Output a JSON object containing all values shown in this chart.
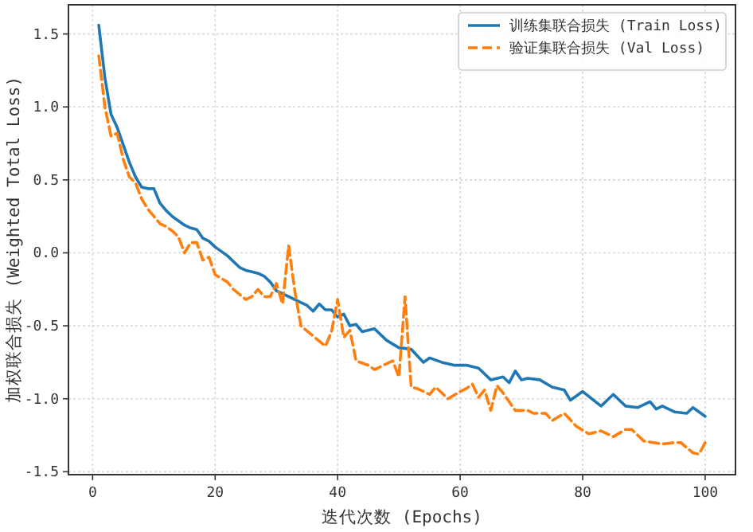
{
  "chart_data": {
    "type": "line",
    "xlabel": "迭代次数 (Epochs)",
    "ylabel": "加权联合损失 (Weighted Total Loss)",
    "xlim": [
      -3.95,
      104.95
    ],
    "ylim": [
      -1.52,
      1.7
    ],
    "xticks": [
      0,
      20,
      40,
      60,
      80,
      100
    ],
    "yticks": [
      {
        "value": -1.5,
        "label": "-1.5"
      },
      {
        "value": -1.0,
        "label": "-1.0"
      },
      {
        "value": -0.5,
        "label": "-0.5"
      },
      {
        "value": 0.0,
        "label": "0.0"
      },
      {
        "value": 0.5,
        "label": "0.5"
      },
      {
        "value": 1.0,
        "label": "1.0"
      },
      {
        "value": 1.5,
        "label": "1.5"
      }
    ],
    "grid": true,
    "legend": "top right",
    "series": [
      {
        "name": "训练集联合损失 (Train Loss)",
        "color": "#1f77b4",
        "line_style": "solid",
        "x": [
          1,
          2,
          3,
          4,
          5,
          6,
          7,
          8,
          9,
          10,
          11,
          12,
          13,
          14,
          15,
          16,
          17,
          18,
          19,
          20,
          21,
          22,
          23,
          24,
          25,
          26,
          27,
          28,
          29,
          30,
          32,
          34,
          35,
          36,
          37,
          38,
          39,
          40,
          41,
          42,
          43,
          44,
          46,
          48,
          50,
          52,
          54,
          55,
          57,
          59,
          61,
          63,
          65,
          67,
          68,
          69,
          70,
          71,
          73,
          75,
          77,
          78,
          80,
          83,
          85,
          87,
          89,
          91,
          92,
          93,
          95,
          97,
          98,
          100
        ],
        "values": [
          1.56,
          1.2,
          0.95,
          0.86,
          0.74,
          0.62,
          0.52,
          0.45,
          0.44,
          0.44,
          0.34,
          0.29,
          0.25,
          0.22,
          0.19,
          0.17,
          0.16,
          0.1,
          0.08,
          0.04,
          0.01,
          -0.02,
          -0.06,
          -0.1,
          -0.12,
          -0.13,
          -0.14,
          -0.16,
          -0.2,
          -0.26,
          -0.3,
          -0.34,
          -0.36,
          -0.4,
          -0.35,
          -0.39,
          -0.39,
          -0.44,
          -0.42,
          -0.5,
          -0.49,
          -0.54,
          -0.52,
          -0.6,
          -0.65,
          -0.66,
          -0.75,
          -0.72,
          -0.75,
          -0.77,
          -0.77,
          -0.79,
          -0.87,
          -0.85,
          -0.89,
          -0.81,
          -0.87,
          -0.86,
          -0.87,
          -0.92,
          -0.94,
          -1.01,
          -0.95,
          -1.05,
          -0.97,
          -1.05,
          -1.06,
          -1.02,
          -1.07,
          -1.05,
          -1.09,
          -1.1,
          -1.06,
          -1.12
        ]
      },
      {
        "name": "验证集联合损失 (Val Loss)",
        "color": "#ff7f0e",
        "line_style": "dashed",
        "x": [
          1,
          2,
          3,
          4,
          5,
          6,
          7,
          8,
          9,
          10,
          11,
          12,
          13,
          14,
          15,
          16,
          17,
          18,
          19,
          20,
          22,
          23,
          25,
          26,
          27,
          28,
          29,
          30,
          31,
          32,
          33,
          34,
          36,
          38,
          39,
          40,
          41,
          42,
          43,
          45,
          46,
          49,
          50,
          51,
          52,
          53,
          55,
          56,
          58,
          60,
          61,
          62,
          63,
          64,
          65,
          66,
          67,
          69,
          71,
          72,
          74,
          75,
          77,
          79,
          81,
          83,
          85,
          87,
          88,
          90,
          93,
          95,
          96,
          98,
          99,
          100
        ],
        "values": [
          1.35,
          1.0,
          0.8,
          0.82,
          0.64,
          0.52,
          0.48,
          0.37,
          0.3,
          0.25,
          0.2,
          0.18,
          0.15,
          0.11,
          0.0,
          0.07,
          0.07,
          -0.05,
          -0.03,
          -0.15,
          -0.2,
          -0.25,
          -0.32,
          -0.3,
          -0.25,
          -0.3,
          -0.3,
          -0.21,
          -0.35,
          0.05,
          -0.26,
          -0.5,
          -0.57,
          -0.64,
          -0.54,
          -0.32,
          -0.58,
          -0.53,
          -0.74,
          -0.77,
          -0.8,
          -0.74,
          -0.85,
          -0.3,
          -0.92,
          -0.93,
          -0.97,
          -0.92,
          -1.0,
          -0.95,
          -0.93,
          -0.9,
          -0.99,
          -0.94,
          -1.08,
          -0.91,
          -0.96,
          -1.08,
          -1.08,
          -1.1,
          -1.1,
          -1.15,
          -1.1,
          -1.19,
          -1.24,
          -1.22,
          -1.26,
          -1.21,
          -1.21,
          -1.29,
          -1.31,
          -1.3,
          -1.3,
          -1.37,
          -1.38,
          -1.3
        ]
      }
    ]
  }
}
